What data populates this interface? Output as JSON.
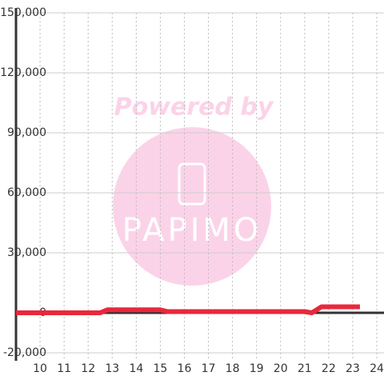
{
  "chart_data": {
    "type": "line",
    "x": [
      9,
      12.5,
      12.8,
      15,
      15.3,
      21,
      21.3,
      21.7,
      23.3
    ],
    "series": [
      {
        "color": "#e8283c",
        "values": [
          0,
          0,
          1500,
          1500,
          600,
          600,
          0,
          3000,
          3000
        ]
      }
    ],
    "xlim": [
      9,
      24.3
    ],
    "xticks": [
      10,
      11,
      12,
      13,
      14,
      15,
      16,
      17,
      18,
      19,
      20,
      21,
      22,
      23,
      24
    ],
    "ylim": [
      -20000,
      150000
    ],
    "yticks": [
      {
        "value": -20000,
        "label": "-20,000"
      },
      0,
      {
        "value": 30000,
        "label": "30,000"
      },
      {
        "value": 60000,
        "label": "60,000"
      },
      {
        "value": 90000,
        "label": "90,000"
      },
      {
        "value": 120000,
        "label": "120,000"
      },
      {
        "value": 150000,
        "label": "150,000"
      }
    ],
    "grid": true,
    "watermark": [
      "Powered by",
      "PAPIMO"
    ]
  }
}
